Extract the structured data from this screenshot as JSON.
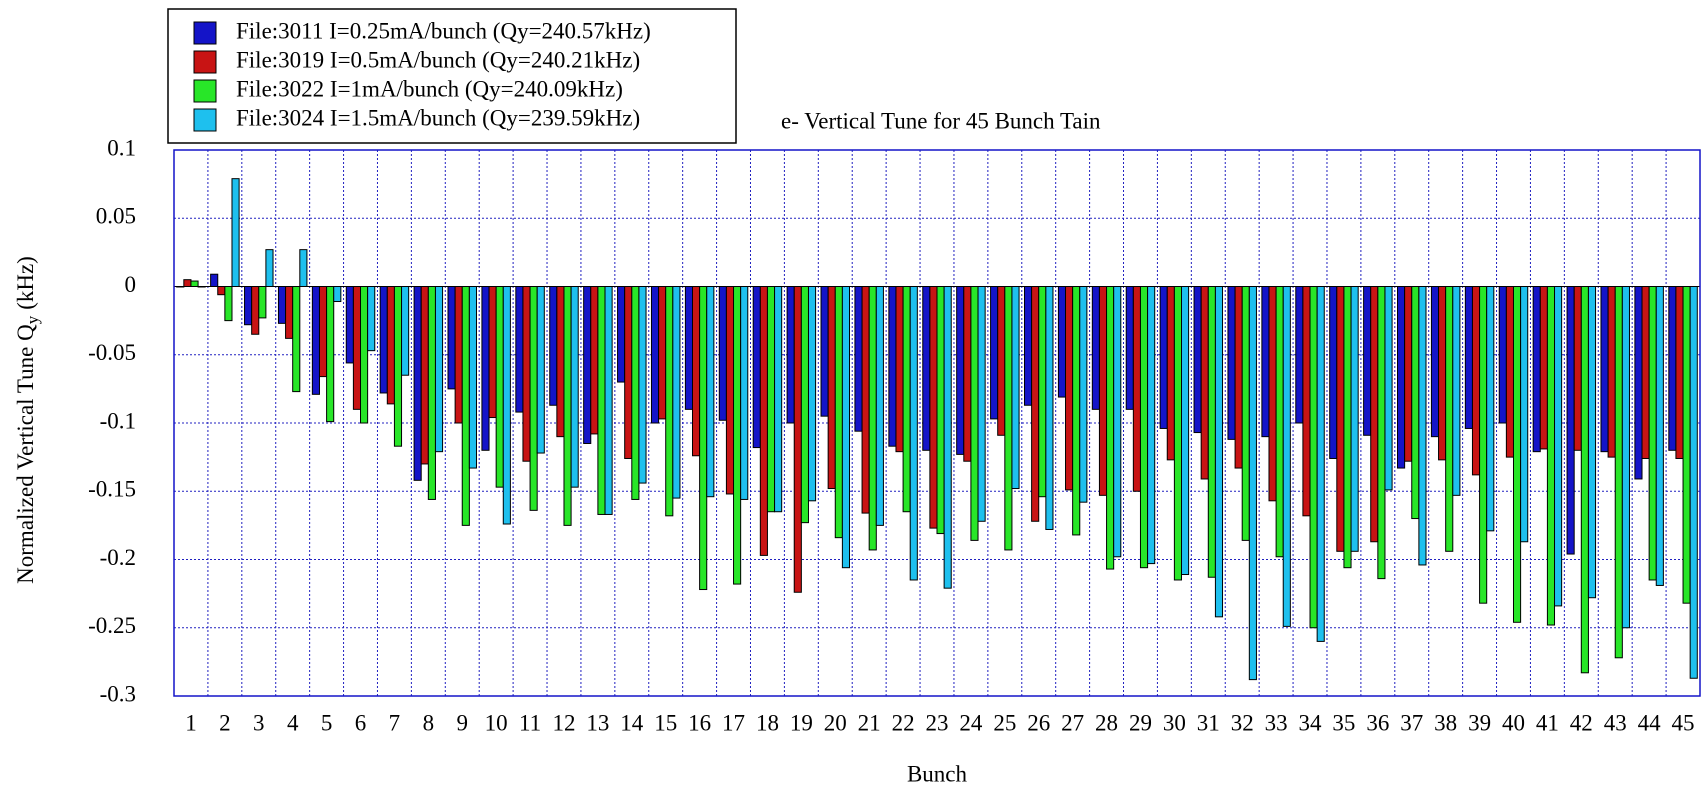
{
  "chart_data": {
    "type": "bar",
    "title": "e- Vertical Tune for 45 Bunch Tain",
    "x_label": "Bunch",
    "y_label": [
      "Normalized Vertical Tune Q",
      "y",
      "(kHz)"
    ],
    "categories": [
      1,
      2,
      3,
      4,
      5,
      6,
      7,
      8,
      9,
      10,
      11,
      12,
      13,
      14,
      15,
      16,
      17,
      18,
      19,
      20,
      21,
      22,
      23,
      24,
      25,
      26,
      27,
      28,
      29,
      30,
      31,
      32,
      33,
      34,
      35,
      36,
      37,
      38,
      39,
      40,
      41,
      42,
      43,
      44,
      45
    ],
    "ylim": [
      -0.3,
      0.1
    ],
    "yticks": [
      0.1,
      0.05,
      0,
      -0.05,
      -0.1,
      -0.15,
      -0.2,
      -0.25,
      -0.3
    ],
    "grid": true,
    "legend": "top-left",
    "series": [
      {
        "name": "File:3011 I=0.25mA/bunch (Qy=240.57kHz)",
        "color": "#1414c8",
        "values": [
          0,
          0.009,
          -0.028,
          -0.027,
          -0.079,
          -0.056,
          -0.078,
          -0.142,
          -0.075,
          -0.12,
          -0.092,
          -0.087,
          -0.115,
          -0.07,
          -0.1,
          -0.09,
          -0.098,
          -0.118,
          -0.1,
          -0.095,
          -0.106,
          -0.117,
          -0.12,
          -0.123,
          -0.097,
          -0.087,
          -0.081,
          -0.09,
          -0.09,
          -0.104,
          -0.107,
          -0.112,
          -0.11,
          -0.1,
          -0.126,
          -0.109,
          -0.133,
          -0.11,
          -0.104,
          -0.1,
          -0.121,
          -0.196,
          -0.121,
          -0.141,
          -0.12
        ]
      },
      {
        "name": "File:3019 I=0.5mA/bunch (Qy=240.21kHz)",
        "color": "#c81414",
        "values": [
          0.005,
          -0.006,
          -0.035,
          -0.038,
          -0.066,
          -0.09,
          -0.086,
          -0.13,
          -0.1,
          -0.096,
          -0.128,
          -0.11,
          -0.108,
          -0.126,
          -0.097,
          -0.124,
          -0.152,
          -0.197,
          -0.224,
          -0.148,
          -0.166,
          -0.121,
          -0.177,
          -0.128,
          -0.109,
          -0.172,
          -0.149,
          -0.153,
          -0.15,
          -0.127,
          -0.141,
          -0.133,
          -0.157,
          -0.168,
          -0.194,
          -0.187,
          -0.128,
          -0.127,
          -0.138,
          -0.125,
          -0.119,
          -0.12,
          -0.125,
          -0.126,
          -0.126
        ]
      },
      {
        "name": "File:3022 I=1mA/bunch (Qy=240.09kHz)",
        "color": "#28e628",
        "values": [
          0.004,
          -0.025,
          -0.023,
          -0.077,
          -0.099,
          -0.1,
          -0.117,
          -0.156,
          -0.175,
          -0.147,
          -0.164,
          -0.175,
          -0.167,
          -0.156,
          -0.168,
          -0.222,
          -0.218,
          -0.165,
          -0.173,
          -0.184,
          -0.193,
          -0.165,
          -0.181,
          -0.186,
          -0.193,
          -0.154,
          -0.182,
          -0.207,
          -0.206,
          -0.215,
          -0.213,
          -0.186,
          -0.198,
          -0.25,
          -0.206,
          -0.214,
          -0.17,
          -0.194,
          -0.232,
          -0.246,
          -0.248,
          -0.283,
          -0.272,
          -0.215,
          -0.232
        ]
      },
      {
        "name": "File:3024 I=1.5mA/bunch (Qy=239.59kHz)",
        "color": "#1ec0ee",
        "values": [
          0,
          0.079,
          0.027,
          0.027,
          -0.011,
          -0.047,
          -0.065,
          -0.121,
          -0.133,
          -0.174,
          -0.122,
          -0.147,
          -0.167,
          -0.144,
          -0.155,
          -0.154,
          -0.156,
          -0.165,
          -0.157,
          -0.206,
          -0.175,
          -0.215,
          -0.221,
          -0.172,
          -0.148,
          -0.178,
          -0.158,
          -0.198,
          -0.203,
          -0.211,
          -0.242,
          -0.288,
          -0.249,
          -0.26,
          -0.194,
          -0.149,
          -0.204,
          -0.153,
          -0.179,
          -0.187,
          -0.234,
          -0.228,
          -0.25,
          -0.219,
          -0.287
        ]
      }
    ]
  }
}
